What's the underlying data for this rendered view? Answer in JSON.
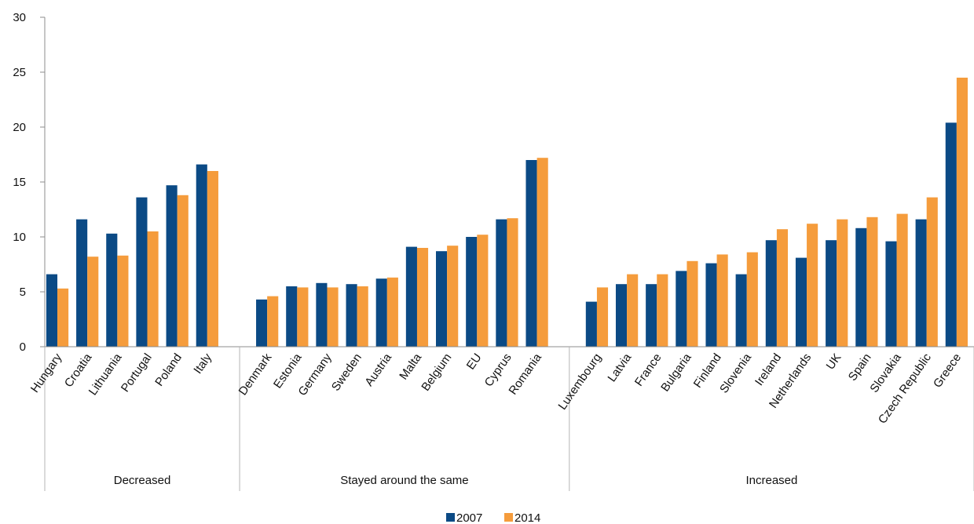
{
  "chart_data": {
    "type": "bar",
    "title": "",
    "xlabel": "",
    "ylabel": "",
    "ylim": [
      0,
      30
    ],
    "yticks": [
      0,
      5,
      10,
      15,
      20,
      25,
      30
    ],
    "grid": false,
    "legend_position": "bottom",
    "groups": [
      {
        "label": "Decreased",
        "categories": [
          "Hungary",
          "Croatia",
          "Lithuania",
          "Portugal",
          "Poland",
          "Italy"
        ]
      },
      {
        "label": "Stayed around the same",
        "categories": [
          "Denmark",
          "Estonia",
          "Germany",
          "Sweden",
          "Austria",
          "Malta",
          "Belgium",
          "EU",
          "Cyprus",
          "Romania"
        ]
      },
      {
        "label": "Increased",
        "categories": [
          "Luxembourg",
          "Latvia",
          "France",
          "Bulgaria",
          "Finland",
          "Slovenia",
          "Ireland",
          "Netherlands",
          "UK",
          "Spain",
          "Slovakia",
          "Czech Republic",
          "Greece"
        ]
      }
    ],
    "series": [
      {
        "name": "2007",
        "color": "#0b4a85",
        "values": [
          6.6,
          11.6,
          10.3,
          13.6,
          14.7,
          16.6,
          4.3,
          5.5,
          5.8,
          5.7,
          6.2,
          9.1,
          8.7,
          10.0,
          11.6,
          17.0,
          4.1,
          5.7,
          5.7,
          6.9,
          7.6,
          6.6,
          9.7,
          8.1,
          9.7,
          10.8,
          9.6,
          11.6,
          20.4
        ]
      },
      {
        "name": "2014",
        "color": "#f59c3c",
        "values": [
          5.3,
          8.2,
          8.3,
          10.5,
          13.8,
          16.0,
          4.6,
          5.4,
          5.4,
          5.5,
          6.3,
          9.0,
          9.2,
          10.2,
          11.7,
          17.2,
          5.4,
          6.6,
          6.6,
          7.8,
          8.4,
          8.6,
          10.7,
          11.2,
          11.6,
          11.8,
          12.1,
          13.6,
          24.5
        ]
      }
    ]
  }
}
